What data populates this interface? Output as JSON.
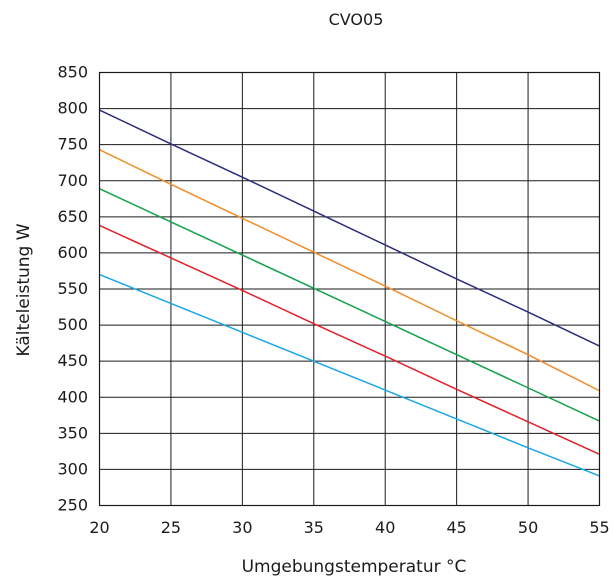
{
  "chart_data": {
    "type": "line",
    "title": "CVO05",
    "xlabel": "Umgebungstemperatur °C",
    "ylabel": "Kälteleistung W",
    "xlim": [
      20,
      55
    ],
    "ylim": [
      250,
      850
    ],
    "xticks": [
      20,
      25,
      30,
      35,
      40,
      45,
      50,
      55
    ],
    "yticks": [
      250,
      300,
      350,
      400,
      450,
      500,
      550,
      600,
      650,
      700,
      750,
      800,
      850
    ],
    "grid": true,
    "x": [
      20,
      25,
      30,
      35,
      40,
      45,
      50,
      55
    ],
    "series": [
      {
        "color": "#2b2d7c",
        "values": [
          798,
          751,
          705,
          658,
          611,
          564,
          518,
          471
        ]
      },
      {
        "color": "#f28c28",
        "values": [
          743,
          695,
          648,
          601,
          554,
          506,
          459,
          409
        ]
      },
      {
        "color": "#13a14a",
        "values": [
          689,
          643,
          597,
          551,
          505,
          459,
          413,
          367
        ]
      },
      {
        "color": "#e3202a",
        "values": [
          638,
          593,
          548,
          502,
          457,
          411,
          366,
          321
        ]
      },
      {
        "color": "#1aa7e8",
        "values": [
          570,
          530,
          490,
          450,
          410,
          370,
          330,
          291
        ]
      }
    ]
  }
}
